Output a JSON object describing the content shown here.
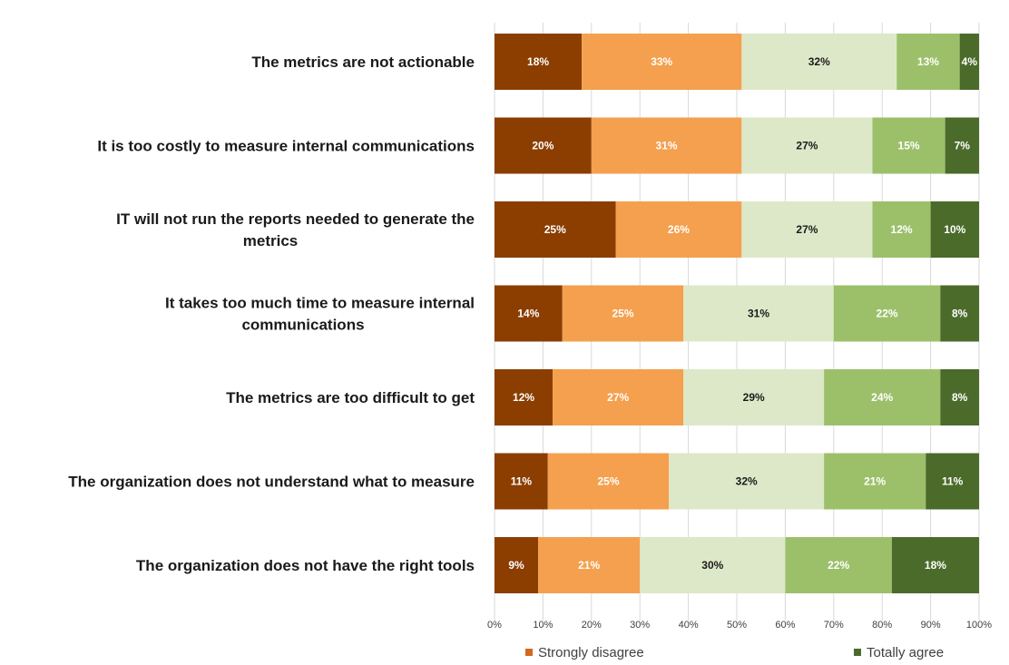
{
  "chart_data": {
    "type": "bar",
    "orientation": "horizontal",
    "stacked": true,
    "percent_stacked": true,
    "categories": [
      [
        "The metrics are not actionable"
      ],
      [
        "It is too costly to measure internal communications"
      ],
      [
        "IT will not run the reports needed to generate the",
        "metrics"
      ],
      [
        "It takes too much time to measure internal",
        "communications"
      ],
      [
        "The metrics are too difficult to get"
      ],
      [
        "The organization does not understand what to measure"
      ],
      [
        "The organization does not have the right tools"
      ]
    ],
    "series": [
      {
        "name": "Strongly disagree",
        "color": "#8B3E00",
        "label_color": "#ffffff",
        "values": [
          18,
          20,
          25,
          14,
          12,
          11,
          9
        ]
      },
      {
        "color": "#F4A04E",
        "label_color": "#ffffff",
        "values": [
          33,
          31,
          26,
          25,
          27,
          25,
          21
        ]
      },
      {
        "color": "#DDE8C9",
        "label_color": "#1a1a1a",
        "values": [
          32,
          27,
          27,
          31,
          29,
          32,
          30
        ]
      },
      {
        "color": "#9CC06A",
        "label_color": "#ffffff",
        "values": [
          13,
          15,
          12,
          22,
          24,
          21,
          22
        ]
      },
      {
        "name": "Totally agree",
        "color": "#4B6B2A",
        "label_color": "#ffffff",
        "values": [
          4,
          7,
          10,
          8,
          8,
          11,
          18
        ]
      }
    ],
    "data_labels": [
      [
        "18%",
        "33%",
        "32%",
        "13%",
        "4%"
      ],
      [
        "20%",
        "31%",
        "27%",
        "15%",
        "7%"
      ],
      [
        "25%",
        "26%",
        "27%",
        "12%",
        "10%"
      ],
      [
        "14%",
        "25%",
        "31%",
        "22%",
        "8%"
      ],
      [
        "12%",
        "27%",
        "29%",
        "24%",
        "8%"
      ],
      [
        "11%",
        "25%",
        "32%",
        "21%",
        "11%"
      ],
      [
        "9%",
        "21%",
        "30%",
        "22%",
        "18%"
      ]
    ],
    "x_ticks": [
      "0%",
      "10%",
      "20%",
      "30%",
      "40%",
      "50%",
      "60%",
      "70%",
      "80%",
      "90%",
      "100%"
    ],
    "xlim": [
      0,
      100
    ],
    "grid": "vertical",
    "legend": {
      "position": "bottom",
      "entries": [
        {
          "label": "Strongly disagree",
          "color": "#D2691E"
        },
        {
          "label": "Totally agree",
          "color": "#4B6B2A"
        }
      ]
    },
    "title": "",
    "xlabel": "",
    "ylabel": ""
  }
}
